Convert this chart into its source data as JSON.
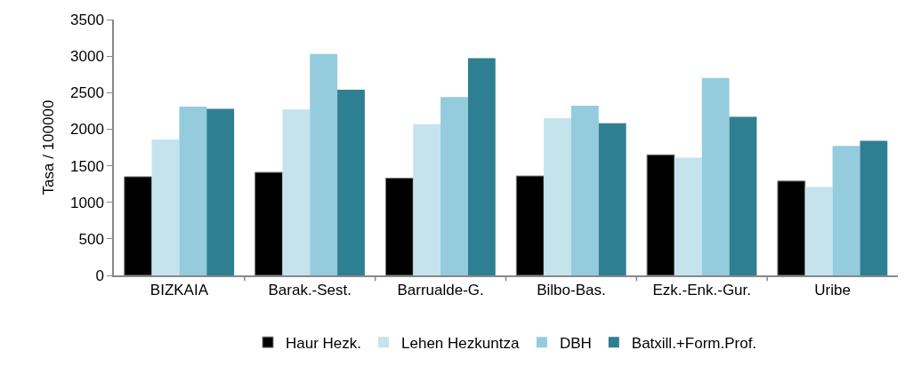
{
  "chart_data": {
    "type": "bar",
    "ylabel": "Tasa / 100000",
    "categories": [
      "BIZKAIA",
      "Barak.-Sest.",
      "Barrualde-G.",
      "Bilbo-Bas.",
      "Ezk.-Enk.-Gur.",
      "Uribe"
    ],
    "series": [
      {
        "name": "Haur Hezk.",
        "color": "#000000",
        "values": [
          1350,
          1410,
          1330,
          1360,
          1650,
          1290
        ]
      },
      {
        "name": "Lehen Hezkuntza",
        "color": "#c5e3ed",
        "values": [
          1860,
          2270,
          2070,
          2150,
          1610,
          1210
        ]
      },
      {
        "name": "DBH",
        "color": "#94ccdd",
        "values": [
          2310,
          3030,
          2440,
          2320,
          2700,
          1770
        ]
      },
      {
        "name": "Batxill.+Form.Prof.",
        "color": "#2f7f93",
        "values": [
          2280,
          2540,
          2970,
          2080,
          2170,
          1840
        ]
      }
    ],
    "ylim": [
      0,
      3500
    ],
    "yticks": [
      0,
      500,
      1000,
      1500,
      2000,
      2500,
      3000,
      3500
    ],
    "grid": false,
    "legend": "bottom"
  }
}
